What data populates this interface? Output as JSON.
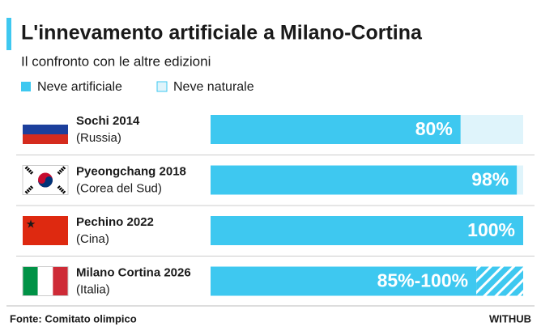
{
  "chart_data": {
    "type": "bar",
    "title": "L'innevamento artificiale a Milano-Cortina",
    "subtitle": "Il confronto con le altre edizioni",
    "categories": [
      "Sochi 2014",
      "Pyeongchang 2018",
      "Pechino 2022",
      "Milano Cortina 2026"
    ],
    "countries": [
      "(Russia)",
      "(Corea del Sud)",
      "(Cina)",
      "(Italia)"
    ],
    "series": [
      {
        "name": "Neve artificiale",
        "color": "#3ec8f0",
        "values": [
          80,
          98,
          100,
          85
        ],
        "value_labels": [
          "80%",
          "98%",
          "100%",
          "85%-100%"
        ]
      },
      {
        "name": "Neve naturale",
        "color": "#dff4fb",
        "values": [
          20,
          2,
          0,
          null
        ]
      }
    ],
    "hatched": {
      "color": "#3ec8f0",
      "values": [
        null,
        null,
        null,
        15
      ]
    },
    "xlim": [
      0,
      100
    ],
    "source": "Fonte: Comitato olimpico",
    "brand": "WITHUB"
  }
}
